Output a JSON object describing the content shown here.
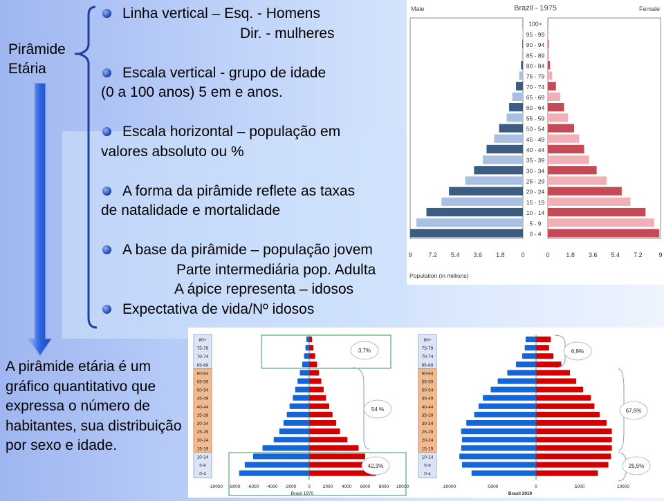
{
  "side_title": {
    "line1": "Pirâmide",
    "line2": "Etária"
  },
  "bullets": [
    {
      "lines": [
        "Linha vertical – Esq. - Homens",
        "Dir. - mulheres"
      ]
    },
    {
      "lines": [
        "Escala vertical  - grupo de idade",
        "(0 a 100 anos) 5 em e anos."
      ]
    },
    {
      "lines": [
        "Escala horizontal – população em",
        "valores absoluto ou %"
      ]
    },
    {
      "lines": [
        "A forma da pirâmide reflete as taxas",
        "de natalidade e mortalidade"
      ]
    },
    {
      "lines": [
        "A base da pirâmide – população jovem",
        "Parte intermediária pop. Adulta",
        "A ápice representa – idosos"
      ]
    },
    {
      "lines": [
        "Expectativa de vida/Nº idosos"
      ]
    }
  ],
  "description": "A pirâmide etária é um gráfico quantitativo que expressa o número de habitantes, sua distribuição por sexo e idade.",
  "colors": {
    "male_dark": "#3d5c82",
    "male_light": "#a9c0e2",
    "female_dark": "#c54a55",
    "female_light": "#f0b0b6",
    "blue_bar": "#1565d8",
    "red_bar": "#d40000",
    "box_green": "#2e9e56",
    "arrow": "#2b63e0"
  },
  "chart_data": [
    {
      "type": "bar",
      "title": "Brazil - 1975",
      "left_label": "Male",
      "right_label": "Female",
      "xlabel": "Population (in millions)",
      "xticks_left": [
        "9",
        "7.2",
        "5.4",
        "3.6",
        "1.8",
        "0"
      ],
      "xticks_right": [
        "0",
        "1.8",
        "3.6",
        "5.4",
        "7.2",
        "9"
      ],
      "xlim": [
        0,
        9
      ],
      "categories": [
        "100+",
        "95 - 99",
        "90 - 94",
        "85 - 89",
        "80 - 84",
        "75 - 79",
        "70 - 74",
        "65 - 69",
        "60 - 64",
        "55 - 59",
        "50 - 54",
        "45 - 49",
        "40 - 44",
        "35 - 39",
        "30 - 34",
        "25 - 29",
        "20 - 24",
        "15 - 19",
        "10 - 14",
        "5 - 9",
        "0 - 4"
      ],
      "series": [
        {
          "name": "Male",
          "values": [
            0.02,
            0.03,
            0.05,
            0.08,
            0.15,
            0.3,
            0.55,
            0.85,
            1.1,
            1.3,
            1.9,
            2.3,
            2.9,
            3.2,
            3.9,
            4.6,
            5.9,
            6.5,
            7.7,
            8.5,
            9.0
          ]
        },
        {
          "name": "Female",
          "values": [
            0.02,
            0.04,
            0.07,
            0.1,
            0.18,
            0.35,
            0.65,
            1.0,
            1.3,
            1.6,
            2.1,
            2.5,
            2.9,
            3.3,
            3.9,
            4.7,
            5.9,
            6.6,
            7.8,
            8.5,
            8.9
          ]
        }
      ]
    },
    {
      "type": "bar",
      "title": "Brasil 1970",
      "xticks": [
        "-10000",
        "-8000",
        "-6000",
        "-4000",
        "-2000",
        "0",
        "2000",
        "4000",
        "6000",
        "8000",
        "10000"
      ],
      "xlim": [
        -10000,
        10000
      ],
      "categories": [
        "80+",
        "75-79",
        "70-74",
        "65-69",
        "60-64",
        "55-59",
        "50-54",
        "45-49",
        "40-44",
        "35-39",
        "30-34",
        "25-29",
        "20-24",
        "15-19",
        "10-14",
        "5-9",
        "0-4"
      ],
      "series": [
        {
          "name": "Homens",
          "values": [
            -300,
            -400,
            -550,
            -750,
            -1000,
            -1250,
            -1500,
            -1750,
            -2100,
            -2400,
            -2750,
            -3200,
            -3800,
            -5000,
            -6000,
            -6900,
            -7500
          ]
        },
        {
          "name": "Mulheres",
          "values": [
            300,
            450,
            650,
            850,
            1050,
            1300,
            1550,
            1800,
            2150,
            2500,
            2900,
            3300,
            4100,
            5300,
            6000,
            6800,
            7200
          ]
        }
      ],
      "annotations": [
        "3,7%",
        "54 %",
        "42,3%"
      ]
    },
    {
      "type": "bar",
      "title": "Brasil 2010",
      "xticks": [
        "-10000",
        "-5000",
        "0",
        "5000",
        "10000"
      ],
      "xlim": [
        -10000,
        10000
      ],
      "categories": [
        "80+",
        "75-79",
        "70-74",
        "65-69",
        "60-64",
        "55-59",
        "50-54",
        "45-49",
        "40-44",
        "35-39",
        "30-34",
        "25-29",
        "20-24",
        "15-19",
        "10-14",
        "5-9",
        "0-4"
      ],
      "series": [
        {
          "name": "Homens",
          "values": [
            -1200,
            -1300,
            -1600,
            -2300,
            -3300,
            -4400,
            -5200,
            -6100,
            -6600,
            -7100,
            -8000,
            -8600,
            -8500,
            -8600,
            -8800,
            -8500,
            -7400
          ]
        },
        {
          "name": "Mulheres",
          "values": [
            1700,
            1500,
            2000,
            2900,
            3900,
            4600,
            5400,
            6300,
            6700,
            7300,
            8100,
            8700,
            8700,
            8700,
            8600,
            8300,
            7100
          ]
        }
      ],
      "annotations": [
        "6,9%",
        "67,6%",
        "25,5%"
      ]
    }
  ]
}
